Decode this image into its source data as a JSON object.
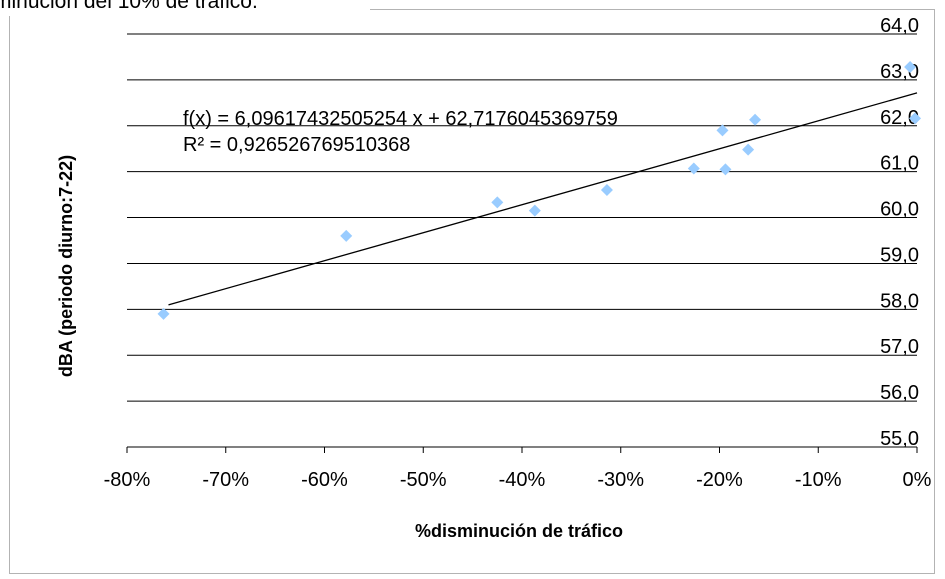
{
  "chart_data": {
    "type": "scatter",
    "title": "minución del 10% de tráfico.",
    "xlabel": "%disminución de tráfico",
    "ylabel": "dBA (periodo diurno:7-22)",
    "xlim": [
      -0.8,
      0
    ],
    "ylim": [
      55,
      64
    ],
    "x_ticks": [
      -0.8,
      -0.7,
      -0.6,
      -0.5,
      -0.4,
      -0.3,
      -0.2,
      -0.1,
      0
    ],
    "x_tick_labels": [
      "-80%",
      "-70%",
      "-60%",
      "-50%",
      "-40%",
      "-30%",
      "-20%",
      "-10%",
      "0%"
    ],
    "y_ticks": [
      55,
      56,
      57,
      58,
      59,
      60,
      61,
      62,
      63,
      64
    ],
    "y_tick_labels": [
      "55,0",
      "56,0",
      "57,0",
      "58,0",
      "59,0",
      "60,0",
      "61,0",
      "62,0",
      "63,0",
      "64,0"
    ],
    "grid": "horizontal major",
    "points": [
      {
        "x": -0.763,
        "y": 57.9
      },
      {
        "x": -0.578,
        "y": 59.6
      },
      {
        "x": -0.425,
        "y": 60.33
      },
      {
        "x": -0.387,
        "y": 60.15
      },
      {
        "x": -0.314,
        "y": 60.6
      },
      {
        "x": -0.226,
        "y": 61.07
      },
      {
        "x": -0.197,
        "y": 61.9
      },
      {
        "x": -0.194,
        "y": 61.05
      },
      {
        "x": -0.171,
        "y": 61.48
      },
      {
        "x": -0.164,
        "y": 62.13
      },
      {
        "x": -0.007,
        "y": 63.28
      },
      {
        "x": -0.002,
        "y": 62.16
      }
    ],
    "trendline": {
      "type": "linear",
      "slope": 6.09617432505254,
      "intercept": 62.7176045369759,
      "x_range": [
        -0.758,
        0
      ]
    },
    "equation_label": "f(x) = 6,09617432505254 x + 62,7176045369759",
    "r2_label": "R² = 0,926526769510368",
    "colors": {
      "marker": "#99CCFF",
      "trendline": "#000000",
      "gridline": "#000000",
      "border": "#B3B3B3"
    }
  }
}
